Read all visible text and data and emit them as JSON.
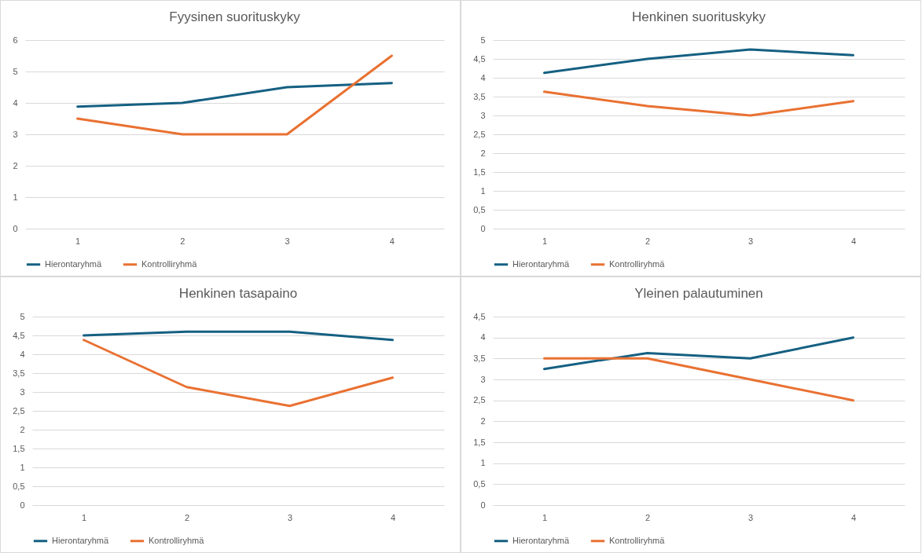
{
  "chart_data": [
    {
      "type": "line",
      "title": "Fyysinen suorituskyky",
      "categories": [
        "1",
        "2",
        "3",
        "4"
      ],
      "series": [
        {
          "name": "Hierontaryhmä",
          "color": "#156082",
          "values": [
            3.88,
            4.0,
            4.5,
            4.63
          ]
        },
        {
          "name": "Kontrolliryhmä",
          "color": "#e97132",
          "values": [
            3.5,
            3.0,
            3.0,
            5.5
          ]
        }
      ],
      "ylim": [
        0,
        6
      ],
      "yticks": [
        0,
        1,
        2,
        3,
        4,
        5,
        6
      ],
      "grid": "y",
      "legend": "bottom"
    },
    {
      "type": "line",
      "title": "Henkinen suorituskyky",
      "categories": [
        "1",
        "2",
        "3",
        "4"
      ],
      "series": [
        {
          "name": "Hierontaryhmä",
          "color": "#156082",
          "values": [
            4.13,
            4.5,
            4.75,
            4.6
          ]
        },
        {
          "name": "Kontrolliryhmä",
          "color": "#e97132",
          "values": [
            3.63,
            3.25,
            3.0,
            3.38
          ]
        }
      ],
      "ylim": [
        0,
        5
      ],
      "yticks": [
        0,
        {
          "value": 0.5,
          "label": "0,5"
        },
        1,
        {
          "value": 1.5,
          "label": "1,5"
        },
        2,
        {
          "value": 2.5,
          "label": "2,5"
        },
        3,
        {
          "value": 3.5,
          "label": "3,5"
        },
        4,
        {
          "value": 4.5,
          "label": "4,5"
        },
        5
      ],
      "grid": "y",
      "legend": "bottom"
    },
    {
      "type": "line",
      "title": "Henkinen tasapaino",
      "categories": [
        "1",
        "2",
        "3",
        "4"
      ],
      "series": [
        {
          "name": "Hierontaryhmä",
          "color": "#156082",
          "values": [
            4.5,
            4.6,
            4.6,
            4.38
          ]
        },
        {
          "name": "Kontrolliryhmä",
          "color": "#e97132",
          "values": [
            4.38,
            3.13,
            2.63,
            3.38
          ]
        }
      ],
      "ylim": [
        0,
        5
      ],
      "yticks": [
        0,
        {
          "value": 0.5,
          "label": "0,5"
        },
        1,
        {
          "value": 1.5,
          "label": "1,5"
        },
        2,
        {
          "value": 2.5,
          "label": "2,5"
        },
        3,
        {
          "value": 3.5,
          "label": "3,5"
        },
        4,
        {
          "value": 4.5,
          "label": "4,5"
        },
        5
      ],
      "grid": "y",
      "legend": "bottom"
    },
    {
      "type": "line",
      "title": "Yleinen palautuminen",
      "categories": [
        "1",
        "2",
        "3",
        "4"
      ],
      "series": [
        {
          "name": "Hierontaryhmä",
          "color": "#156082",
          "values": [
            3.25,
            3.63,
            3.5,
            4.0
          ]
        },
        {
          "name": "Kontrolliryhmä",
          "color": "#e97132",
          "values": [
            3.5,
            3.5,
            3.0,
            2.5
          ]
        }
      ],
      "ylim": [
        0,
        4.5
      ],
      "yticks": [
        0,
        {
          "value": 0.5,
          "label": "0,5"
        },
        1,
        {
          "value": 1.5,
          "label": "1,5"
        },
        2,
        {
          "value": 2.5,
          "label": "2,5"
        },
        3,
        {
          "value": 3.5,
          "label": "3,5"
        },
        4,
        {
          "value": 4.5,
          "label": "4,5"
        }
      ],
      "grid": "y",
      "legend": "bottom"
    }
  ]
}
